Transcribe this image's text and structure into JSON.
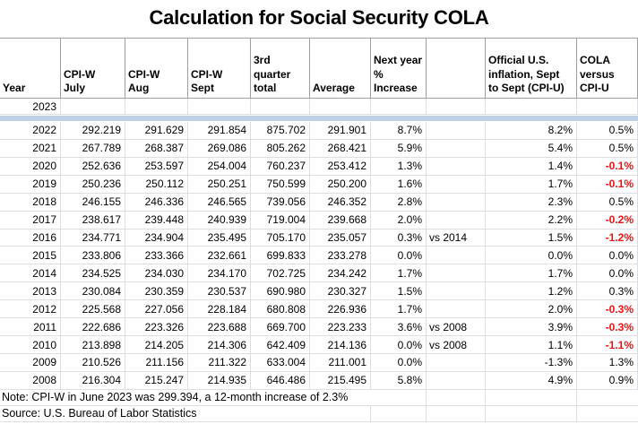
{
  "title": "Calculation for Social Security COLA",
  "table": {
    "columns": [
      {
        "key": "year",
        "label": "Year"
      },
      {
        "key": "july",
        "label": "CPI-W\nJuly"
      },
      {
        "key": "aug",
        "label": "CPI-W\nAug"
      },
      {
        "key": "sept",
        "label": "CPI-W\nSept"
      },
      {
        "key": "total",
        "label": "3rd\nquarter\ntotal"
      },
      {
        "key": "average",
        "label": "Average"
      },
      {
        "key": "increase",
        "label": "Next year\n% Increase"
      },
      {
        "key": "vs",
        "label": ""
      },
      {
        "key": "cpiu",
        "label": "Official U.S.\ninflation, Sept\nto Sept (CPI-U)"
      },
      {
        "key": "cola",
        "label": "COLA\nversus\nCPI-U"
      }
    ],
    "rows": [
      {
        "year": "2023",
        "july": "",
        "aug": "",
        "sept": "",
        "total": "",
        "average": "",
        "increase": "",
        "vs": "",
        "cpiu": "",
        "cola": "",
        "separator_after": true
      },
      {
        "year": "2022",
        "july": "292.219",
        "aug": "291.629",
        "sept": "291.854",
        "total": "875.702",
        "average": "291.901",
        "increase": "8.7%",
        "vs": "",
        "cpiu": "8.2%",
        "cola": "0.5%"
      },
      {
        "year": "2021",
        "july": "267.789",
        "aug": "268.387",
        "sept": "269.086",
        "total": "805.262",
        "average": "268.421",
        "increase": "5.9%",
        "vs": "",
        "cpiu": "5.4%",
        "cola": "0.5%"
      },
      {
        "year": "2020",
        "july": "252.636",
        "aug": "253.597",
        "sept": "254.004",
        "total": "760.237",
        "average": "253.412",
        "increase": "1.3%",
        "vs": "",
        "cpiu": "1.4%",
        "cola": "-0.1%"
      },
      {
        "year": "2019",
        "july": "250.236",
        "aug": "250.112",
        "sept": "250.251",
        "total": "750.599",
        "average": "250.200",
        "increase": "1.6%",
        "vs": "",
        "cpiu": "1.7%",
        "cola": "-0.1%"
      },
      {
        "year": "2018",
        "july": "246.155",
        "aug": "246.336",
        "sept": "246.565",
        "total": "739.056",
        "average": "246.352",
        "increase": "2.8%",
        "vs": "",
        "cpiu": "2.3%",
        "cola": "0.5%"
      },
      {
        "year": "2017",
        "july": "238.617",
        "aug": "239.448",
        "sept": "240.939",
        "total": "719.004",
        "average": "239.668",
        "increase": "2.0%",
        "vs": "",
        "cpiu": "2.2%",
        "cola": "-0.2%"
      },
      {
        "year": "2016",
        "july": "234.771",
        "aug": "234.904",
        "sept": "235.495",
        "total": "705.170",
        "average": "235.057",
        "increase": "0.3%",
        "vs": "vs 2014",
        "cpiu": "1.5%",
        "cola": "-1.2%"
      },
      {
        "year": "2015",
        "july": "233.806",
        "aug": "233.366",
        "sept": "232.661",
        "total": "699.833",
        "average": "233.278",
        "increase": "0.0%",
        "vs": "",
        "cpiu": "0.0%",
        "cola": "0.0%"
      },
      {
        "year": "2014",
        "july": "234.525",
        "aug": "234.030",
        "sept": "234.170",
        "total": "702.725",
        "average": "234.242",
        "increase": "1.7%",
        "vs": "",
        "cpiu": "1.7%",
        "cola": "0.0%"
      },
      {
        "year": "2013",
        "july": "230.084",
        "aug": "230.359",
        "sept": "230.537",
        "total": "690.980",
        "average": "230.327",
        "increase": "1.5%",
        "vs": "",
        "cpiu": "1.2%",
        "cola": "0.3%"
      },
      {
        "year": "2012",
        "july": "225.568",
        "aug": "227.056",
        "sept": "228.184",
        "total": "680.808",
        "average": "226.936",
        "increase": "1.7%",
        "vs": "",
        "cpiu": "2.0%",
        "cola": "-0.3%"
      },
      {
        "year": "2011",
        "july": "222.686",
        "aug": "223.326",
        "sept": "223.688",
        "total": "669.700",
        "average": "223.233",
        "increase": "3.6%",
        "vs": "vs 2008",
        "cpiu": "3.9%",
        "cola": "-0.3%"
      },
      {
        "year": "2010",
        "july": "213.898",
        "aug": "214.205",
        "sept": "214.306",
        "total": "642.409",
        "average": "214.136",
        "increase": "0.0%",
        "vs": "vs 2008",
        "cpiu": "1.1%",
        "cola": "-1.1%"
      },
      {
        "year": "2009",
        "july": "210.526",
        "aug": "211.156",
        "sept": "211.322",
        "total": "633.004",
        "average": "211.001",
        "increase": "0.0%",
        "vs": "",
        "cpiu": "-1.3%",
        "cola": "1.3%"
      },
      {
        "year": "2008",
        "july": "216.304",
        "aug": "215.247",
        "sept": "214.935",
        "total": "646.486",
        "average": "215.495",
        "increase": "5.8%",
        "vs": "",
        "cpiu": "4.9%",
        "cola": "0.9%"
      }
    ]
  },
  "note": "Note: CPI-W in June 2023 was 299.394, a 12-month increase of 2.3%",
  "source": "Source: U.S. Bureau of Labor Statistics",
  "colors": {
    "negative_text": "#ee1111",
    "separator_band": "#bdd0e6",
    "header_border": "#9f9f9f",
    "gridline": "#dadde1"
  }
}
